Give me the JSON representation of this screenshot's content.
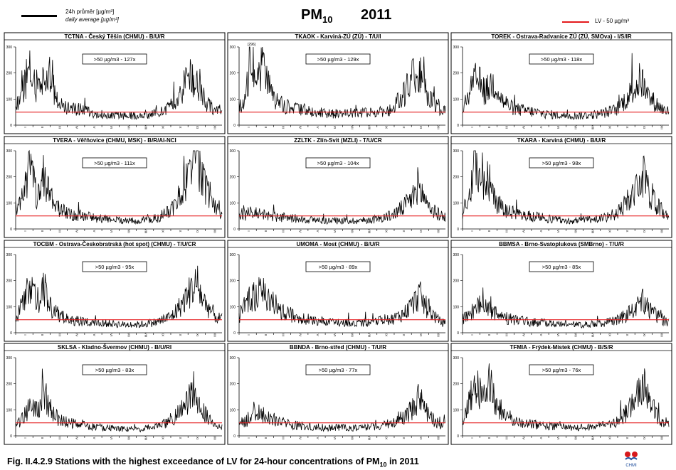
{
  "header": {
    "legend_daily_line1": "24h průměr [µg/m³]",
    "legend_daily_line2": "daily average [µg/m³]",
    "legend_lv": "LV - 50 µg/m³",
    "title_main": "PM",
    "title_sub": "10",
    "year": "2011"
  },
  "caption": {
    "prefix": "Fig. II.4.2.9  Stations with the highest exceedance of LV for 24-hour concentrations of PM",
    "sub": "10",
    "suffix": " in 2011"
  },
  "logo": {
    "text": "CHMI",
    "icon": "chmi-logo-icon"
  },
  "colors": {
    "series": "#000000",
    "limit_line": "#e41a1c",
    "frame": "#000000"
  },
  "chart_data": [
    {
      "type": "line",
      "title": "TCTNA - Český Těšín (CHMU) - B/U/R",
      "annotation": ">50 µg/m3 - 127x",
      "limit": 50,
      "ylim": [
        0,
        300
      ],
      "yticks": [
        0,
        100,
        200,
        300
      ],
      "months": [
        "I",
        "II",
        "III",
        "IV",
        "V",
        "VI",
        "VII",
        "VIII",
        "IX",
        "X",
        "XI",
        "XII"
      ],
      "profile": [
        [
          0,
          60
        ],
        [
          15,
          150
        ],
        [
          25,
          200
        ],
        [
          35,
          140
        ],
        [
          50,
          170
        ],
        [
          60,
          210
        ],
        [
          70,
          100
        ],
        [
          90,
          60
        ],
        [
          120,
          55
        ],
        [
          150,
          40
        ],
        [
          180,
          35
        ],
        [
          210,
          35
        ],
        [
          240,
          40
        ],
        [
          270,
          60
        ],
        [
          290,
          110
        ],
        [
          300,
          170
        ],
        [
          310,
          190
        ],
        [
          320,
          140
        ],
        [
          335,
          90
        ],
        [
          350,
          60
        ],
        [
          364,
          50
        ]
      ]
    },
    {
      "type": "line",
      "title": "TKAOK - Karviná-ZÚ (ZÚ) - T/U/I",
      "annotation": ">50 µg/m3 - 129x",
      "peak_label": "[296]",
      "limit": 50,
      "ylim": [
        0,
        300
      ],
      "yticks": [
        0,
        100,
        200,
        300
      ],
      "months": [
        "I",
        "II",
        "III",
        "IV",
        "V",
        "VI",
        "VII",
        "VIII",
        "IX",
        "X",
        "XI",
        "XII"
      ],
      "profile": [
        [
          0,
          60
        ],
        [
          12,
          100
        ],
        [
          22,
          296
        ],
        [
          30,
          150
        ],
        [
          42,
          240
        ],
        [
          55,
          120
        ],
        [
          70,
          80
        ],
        [
          90,
          60
        ],
        [
          120,
          55
        ],
        [
          150,
          45
        ],
        [
          180,
          40
        ],
        [
          210,
          45
        ],
        [
          240,
          45
        ],
        [
          270,
          60
        ],
        [
          290,
          110
        ],
        [
          305,
          170
        ],
        [
          315,
          200
        ],
        [
          325,
          150
        ],
        [
          340,
          90
        ],
        [
          355,
          60
        ],
        [
          364,
          50
        ]
      ]
    },
    {
      "type": "line",
      "title": "TOREK - Ostrava-Radvanice ZÚ (ZÚ, SMOva) - I/S/IR",
      "annotation": ">50 µg/m3 - 118x",
      "limit": 50,
      "ylim": [
        0,
        300
      ],
      "yticks": [
        0,
        100,
        200,
        300
      ],
      "months": [
        "I",
        "II",
        "III",
        "IV",
        "V",
        "VI",
        "VII",
        "VIII",
        "IX",
        "X",
        "XI",
        "XII"
      ],
      "profile": [
        [
          0,
          55
        ],
        [
          15,
          130
        ],
        [
          25,
          170
        ],
        [
          40,
          120
        ],
        [
          55,
          160
        ],
        [
          70,
          90
        ],
        [
          90,
          60
        ],
        [
          120,
          50
        ],
        [
          150,
          40
        ],
        [
          180,
          35
        ],
        [
          210,
          35
        ],
        [
          240,
          40
        ],
        [
          270,
          55
        ],
        [
          290,
          100
        ],
        [
          305,
          140
        ],
        [
          315,
          170
        ],
        [
          325,
          110
        ],
        [
          340,
          80
        ],
        [
          355,
          55
        ],
        [
          364,
          50
        ]
      ]
    },
    {
      "type": "line",
      "title": "TVERA - Věřňovice (CHMU, MSK) - B/R/AI-NCI",
      "annotation": ">50 µg/m3 - 111x",
      "limit": 50,
      "ylim": [
        0,
        300
      ],
      "yticks": [
        0,
        100,
        200,
        300
      ],
      "months": [
        "I",
        "II",
        "III",
        "IV",
        "V",
        "VI",
        "VII",
        "VIII",
        "IX",
        "X",
        "XI",
        "XII"
      ],
      "profile": [
        [
          0,
          60
        ],
        [
          15,
          140
        ],
        [
          25,
          230
        ],
        [
          38,
          120
        ],
        [
          50,
          200
        ],
        [
          62,
          110
        ],
        [
          80,
          70
        ],
        [
          100,
          50
        ],
        [
          130,
          45
        ],
        [
          160,
          35
        ],
        [
          190,
          30
        ],
        [
          220,
          30
        ],
        [
          250,
          40
        ],
        [
          275,
          70
        ],
        [
          295,
          140
        ],
        [
          310,
          230
        ],
        [
          320,
          270
        ],
        [
          330,
          180
        ],
        [
          345,
          100
        ],
        [
          355,
          70
        ],
        [
          364,
          60
        ]
      ]
    },
    {
      "type": "line",
      "title": "ZZLTK - Zlín-Svit (MZLI) - T/U/CR",
      "annotation": ">50 µg/m3 - 104x",
      "limit": 50,
      "ylim": [
        0,
        300
      ],
      "yticks": [
        0,
        100,
        200,
        300
      ],
      "months": [
        "I",
        "II",
        "III",
        "IV",
        "V",
        "VI",
        "VII",
        "VIII",
        "IX",
        "X",
        "XI",
        "XII"
      ],
      "profile": [
        [
          0,
          45
        ],
        [
          20,
          60
        ],
        [
          40,
          55
        ],
        [
          60,
          45
        ],
        [
          90,
          40
        ],
        [
          120,
          35
        ],
        [
          150,
          30
        ],
        [
          180,
          30
        ],
        [
          210,
          30
        ],
        [
          240,
          35
        ],
        [
          270,
          50
        ],
        [
          290,
          80
        ],
        [
          305,
          110
        ],
        [
          315,
          160
        ],
        [
          325,
          120
        ],
        [
          340,
          70
        ],
        [
          355,
          50
        ],
        [
          364,
          45
        ]
      ]
    },
    {
      "type": "line",
      "title": "TKARA - Karviná (CHMU) - B/U/R",
      "annotation": ">50 µg/m3 - 98x",
      "limit": 50,
      "ylim": [
        0,
        300
      ],
      "yticks": [
        0,
        100,
        200,
        300
      ],
      "months": [
        "I",
        "II",
        "III",
        "IV",
        "V",
        "VI",
        "VII",
        "VIII",
        "IX",
        "X",
        "XI",
        "XII"
      ],
      "profile": [
        [
          0,
          55
        ],
        [
          12,
          120
        ],
        [
          22,
          260
        ],
        [
          32,
          150
        ],
        [
          45,
          190
        ],
        [
          58,
          100
        ],
        [
          75,
          70
        ],
        [
          100,
          50
        ],
        [
          130,
          45
        ],
        [
          160,
          35
        ],
        [
          190,
          30
        ],
        [
          220,
          35
        ],
        [
          250,
          40
        ],
        [
          275,
          60
        ],
        [
          295,
          110
        ],
        [
          310,
          150
        ],
        [
          320,
          200
        ],
        [
          330,
          130
        ],
        [
          345,
          80
        ],
        [
          355,
          60
        ],
        [
          364,
          50
        ]
      ]
    },
    {
      "type": "line",
      "title": "TOCBM - Ostrava-Českobratrská (hot spot) (CHMU) - T/U/CR",
      "annotation": ">50 µg/m3 - 95x",
      "limit": 50,
      "ylim": [
        0,
        300
      ],
      "yticks": [
        0,
        100,
        200,
        300
      ],
      "months": [
        "I",
        "II",
        "III",
        "IV",
        "V",
        "VI",
        "VII",
        "VIII",
        "IX",
        "X",
        "XI",
        "XII"
      ],
      "profile": [
        [
          0,
          50
        ],
        [
          15,
          120
        ],
        [
          25,
          180
        ],
        [
          38,
          110
        ],
        [
          50,
          170
        ],
        [
          62,
          90
        ],
        [
          80,
          60
        ],
        [
          100,
          45
        ],
        [
          130,
          40
        ],
        [
          160,
          35
        ],
        [
          190,
          30
        ],
        [
          220,
          30
        ],
        [
          250,
          40
        ],
        [
          275,
          60
        ],
        [
          295,
          110
        ],
        [
          310,
          160
        ],
        [
          320,
          180
        ],
        [
          330,
          120
        ],
        [
          345,
          80
        ],
        [
          355,
          55
        ],
        [
          364,
          50
        ]
      ]
    },
    {
      "type": "line",
      "title": "UMOMA - Most (CHMU) - B/U/R",
      "annotation": ">50 µg/m3 - 89x",
      "limit": 50,
      "ylim": [
        0,
        300
      ],
      "yticks": [
        0,
        100,
        200,
        300
      ],
      "months": [
        "I",
        "II",
        "III",
        "IV",
        "V",
        "VI",
        "VII",
        "VIII",
        "IX",
        "X",
        "XI",
        "XII"
      ],
      "profile": [
        [
          0,
          60
        ],
        [
          15,
          120
        ],
        [
          30,
          140
        ],
        [
          45,
          150
        ],
        [
          60,
          110
        ],
        [
          75,
          80
        ],
        [
          95,
          60
        ],
        [
          120,
          50
        ],
        [
          150,
          40
        ],
        [
          180,
          35
        ],
        [
          210,
          35
        ],
        [
          240,
          40
        ],
        [
          270,
          50
        ],
        [
          290,
          70
        ],
        [
          305,
          100
        ],
        [
          318,
          140
        ],
        [
          328,
          100
        ],
        [
          345,
          60
        ],
        [
          355,
          40
        ],
        [
          364,
          35
        ]
      ]
    },
    {
      "type": "line",
      "title": "BBMSA - Brno-Svatoplukova (SMBrno) - T/U/R",
      "annotation": ">50 µg/m3 - 85x",
      "limit": 50,
      "ylim": [
        0,
        300
      ],
      "yticks": [
        0,
        100,
        200,
        300
      ],
      "months": [
        "I",
        "II",
        "III",
        "IV",
        "V",
        "VI",
        "VII",
        "VIII",
        "IX",
        "X",
        "XI",
        "XII"
      ],
      "profile": [
        [
          0,
          50
        ],
        [
          15,
          70
        ],
        [
          28,
          100
        ],
        [
          40,
          90
        ],
        [
          55,
          70
        ],
        [
          75,
          55
        ],
        [
          95,
          45
        ],
        [
          120,
          40
        ],
        [
          150,
          35
        ],
        [
          180,
          35
        ],
        [
          210,
          30
        ],
        [
          240,
          35
        ],
        [
          270,
          45
        ],
        [
          290,
          65
        ],
        [
          305,
          90
        ],
        [
          318,
          120
        ],
        [
          328,
          90
        ],
        [
          345,
          60
        ],
        [
          355,
          45
        ],
        [
          364,
          40
        ]
      ]
    },
    {
      "type": "line",
      "title": "SKLSA - Kladno-Švermov (CHMU) - B/U/RI",
      "annotation": ">50 µg/m3 - 83x",
      "limit": 50,
      "ylim": [
        0,
        300
      ],
      "yticks": [
        0,
        100,
        200,
        300
      ],
      "months": [
        "I",
        "II",
        "III",
        "IV",
        "V",
        "VI",
        "VII",
        "VIII",
        "IX",
        "X",
        "XI",
        "XII"
      ],
      "profile": [
        [
          0,
          40
        ],
        [
          15,
          70
        ],
        [
          25,
          110
        ],
        [
          38,
          90
        ],
        [
          50,
          140
        ],
        [
          60,
          100
        ],
        [
          75,
          60
        ],
        [
          100,
          45
        ],
        [
          130,
          35
        ],
        [
          160,
          30
        ],
        [
          190,
          25
        ],
        [
          220,
          25
        ],
        [
          250,
          35
        ],
        [
          270,
          50
        ],
        [
          290,
          90
        ],
        [
          305,
          130
        ],
        [
          315,
          175
        ],
        [
          325,
          110
        ],
        [
          340,
          60
        ],
        [
          355,
          40
        ],
        [
          364,
          35
        ]
      ]
    },
    {
      "type": "line",
      "title": "BBNDA - Brno-střed (CHMU) - T/U/R",
      "annotation": ">50 µg/m3 - 77x",
      "limit": 50,
      "ylim": [
        0,
        300
      ],
      "yticks": [
        0,
        100,
        200,
        300
      ],
      "months": [
        "I",
        "II",
        "III",
        "IV",
        "V",
        "VI",
        "VII",
        "VIII",
        "IX",
        "X",
        "XI",
        "XII"
      ],
      "profile": [
        [
          0,
          45
        ],
        [
          15,
          60
        ],
        [
          28,
          100
        ],
        [
          40,
          80
        ],
        [
          55,
          65
        ],
        [
          75,
          50
        ],
        [
          95,
          40
        ],
        [
          120,
          35
        ],
        [
          150,
          30
        ],
        [
          180,
          30
        ],
        [
          210,
          30
        ],
        [
          240,
          35
        ],
        [
          270,
          45
        ],
        [
          290,
          70
        ],
        [
          305,
          100
        ],
        [
          318,
          140
        ],
        [
          328,
          90
        ],
        [
          345,
          55
        ],
        [
          355,
          40
        ],
        [
          364,
          35
        ]
      ]
    },
    {
      "type": "line",
      "title": "TFMIA - Frýdek-Místek (CHMU) - B/S/R",
      "annotation": ">50 µg/m3 - 76x",
      "limit": 50,
      "ylim": [
        0,
        300
      ],
      "yticks": [
        0,
        100,
        200,
        300
      ],
      "months": [
        "I",
        "II",
        "III",
        "IV",
        "V",
        "VI",
        "VII",
        "VIII",
        "IX",
        "X",
        "XI",
        "XII"
      ],
      "profile": [
        [
          0,
          50
        ],
        [
          12,
          120
        ],
        [
          22,
          220
        ],
        [
          35,
          140
        ],
        [
          48,
          200
        ],
        [
          60,
          110
        ],
        [
          78,
          70
        ],
        [
          100,
          50
        ],
        [
          130,
          40
        ],
        [
          160,
          35
        ],
        [
          190,
          30
        ],
        [
          220,
          30
        ],
        [
          250,
          40
        ],
        [
          275,
          55
        ],
        [
          295,
          100
        ],
        [
          310,
          150
        ],
        [
          320,
          190
        ],
        [
          330,
          120
        ],
        [
          345,
          70
        ],
        [
          355,
          50
        ],
        [
          364,
          45
        ]
      ]
    }
  ]
}
